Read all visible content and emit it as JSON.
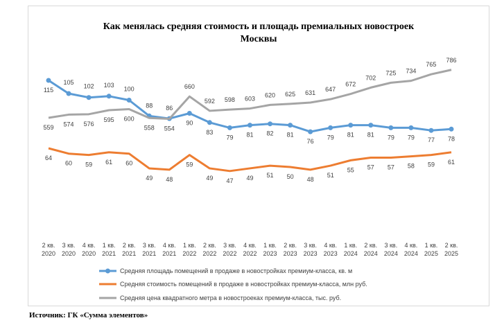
{
  "chart_data": {
    "type": "line",
    "title_line1": "Как менялась средняя стоимость  и площадь премиальных новостроек",
    "title_line2": "Москвы",
    "categories": [
      [
        "2 кв.",
        "2020"
      ],
      [
        "3 кв.",
        "2020"
      ],
      [
        "4 кв.",
        "2020"
      ],
      [
        "1 кв.",
        "2021"
      ],
      [
        "2 кв.",
        "2021"
      ],
      [
        "3 кв.",
        "2021"
      ],
      [
        "4 кв.",
        "2021"
      ],
      [
        "1 кв.",
        "2022"
      ],
      [
        "2 кв.",
        "2022"
      ],
      [
        "3 кв.",
        "2022"
      ],
      [
        "4 кв.",
        "2022"
      ],
      [
        "1 кв.",
        "2023"
      ],
      [
        "2 кв.",
        "2023"
      ],
      [
        "3 кв.",
        "2023"
      ],
      [
        "4 кв.",
        "2023"
      ],
      [
        "1 кв.",
        "2024"
      ],
      [
        "2 кв.",
        "2024"
      ],
      [
        "3 кв.",
        "2024"
      ],
      [
        "4 кв.",
        "2024"
      ],
      [
        "1 кв.",
        "2025"
      ],
      [
        "2 кв.",
        "2025"
      ]
    ],
    "series": [
      {
        "name": "Средняя площадь помещений в продаже в новостройках премиум-класса, кв. м",
        "color": "#5b9bd5",
        "markers": true,
        "values": [
          115,
          105,
          102,
          103,
          100,
          88,
          86,
          90,
          83,
          79,
          81,
          82,
          81,
          76,
          79,
          81,
          81,
          79,
          79,
          77,
          78
        ],
        "labels": [
          "115",
          "105",
          "102",
          "103",
          "100",
          "88",
          "86",
          "90",
          "83",
          "79",
          "81",
          "82",
          "81",
          "76",
          "79",
          "81",
          "81",
          "79",
          "79",
          "77",
          "78"
        ]
      },
      {
        "name": "Средняя стоимость помещений в продаже в новостройках премиум-класса, млн руб.",
        "color": "#ed7d31",
        "markers": false,
        "values": [
          64,
          60,
          59,
          61,
          60,
          49,
          48,
          59,
          49,
          47,
          49,
          51,
          50,
          48,
          51,
          55,
          57,
          57,
          58,
          59,
          61
        ],
        "labels": [
          "64",
          "60",
          "59",
          "61",
          "60",
          "49",
          "48",
          "59",
          "49",
          "47",
          "49",
          "51",
          "50",
          "48",
          "51",
          "55",
          "57",
          "57",
          "58",
          "59",
          "61"
        ]
      },
      {
        "name": "Средняя цена квадратного метра в новостроеках премиум-класса, тыс. руб.",
        "color": "#a5a5a5",
        "markers": false,
        "values": [
          559,
          574,
          576,
          595,
          600,
          558,
          554,
          660,
          592,
          598,
          603,
          620,
          625,
          631,
          647,
          672,
          702,
          725,
          734,
          765,
          786
        ],
        "labels": [
          "559",
          "574",
          "576",
          "595",
          "600",
          "558",
          "554",
          "660",
          "592",
          "598",
          "603",
          "620",
          "625",
          "631",
          "647",
          "672",
          "702",
          "725",
          "734",
          "765",
          "786"
        ]
      }
    ],
    "legend_position": "bottom",
    "grid": false,
    "source": "Источник: ГК «Сумма элементов»"
  }
}
